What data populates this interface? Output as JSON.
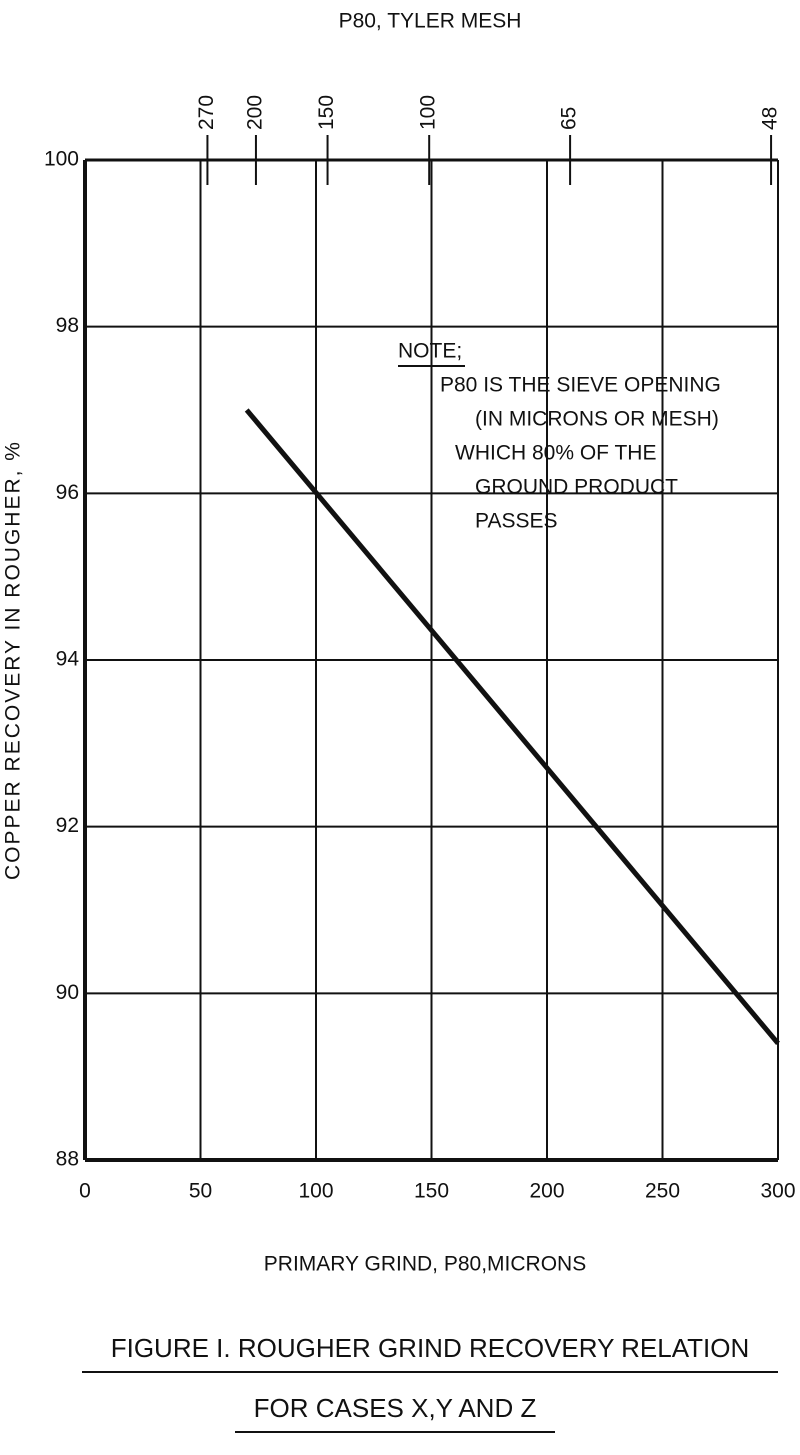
{
  "chart_data": {
    "type": "line",
    "title": [
      "FIGURE I. ROUGHER GRIND RECOVERY RELATION",
      "FOR CASES X,Y AND Z"
    ],
    "x_label": "PRIMARY GRIND, P80,MICRONS",
    "x2_label": "P80, TYLER MESH",
    "y_label": "COPPER RECOVERY IN ROUGHER, %",
    "annotations": [
      "NOTE;",
      "P80 IS THE SIEVE OPENING",
      "(IN MICRONS OR MESH)",
      "WHICH 80% OF THE",
      "GROUND PRODUCT",
      "PASSES"
    ],
    "x": [
      70,
      300
    ],
    "values": [
      97,
      89.4
    ],
    "color": "#111111",
    "xlim": [
      0,
      300
    ],
    "xticks": [
      0,
      50,
      100,
      150,
      200,
      250,
      300
    ],
    "ylim": [
      88,
      100
    ],
    "yticks": [
      88,
      90,
      92,
      94,
      96,
      98,
      100
    ],
    "x2ticks": [
      {
        "value": 53,
        "label": "270"
      },
      {
        "value": 74,
        "label": "200"
      },
      {
        "value": 105,
        "label": "150"
      },
      {
        "value": 149,
        "label": "100"
      },
      {
        "value": 210,
        "label": "65"
      },
      {
        "value": 297,
        "label": "48"
      }
    ],
    "grid": true
  }
}
